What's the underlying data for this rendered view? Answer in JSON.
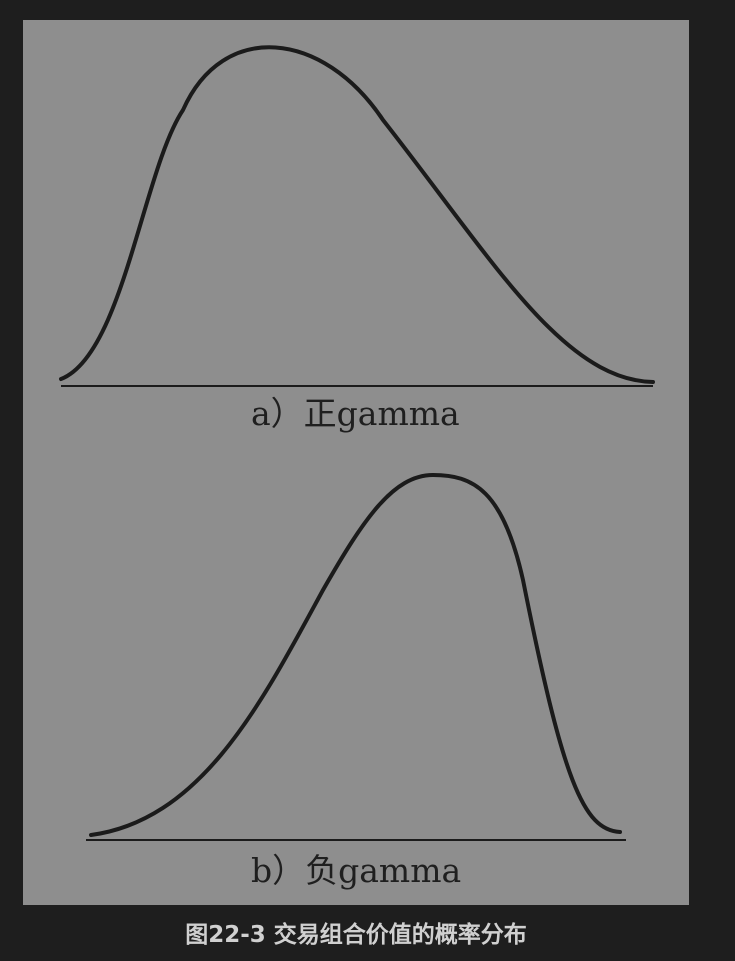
{
  "figure": {
    "panel_a_label": "a）正gamma",
    "panel_b_label": "b）负gamma",
    "caption": "图22-3 交易组合价值的概率分布"
  },
  "colors": {
    "page_background": "#1e1e1e",
    "figure_background": "#8e8e8e",
    "curve": "#1b1b1b",
    "label_text": "#1f1f1f",
    "caption_text": "#d0d0d0"
  }
}
